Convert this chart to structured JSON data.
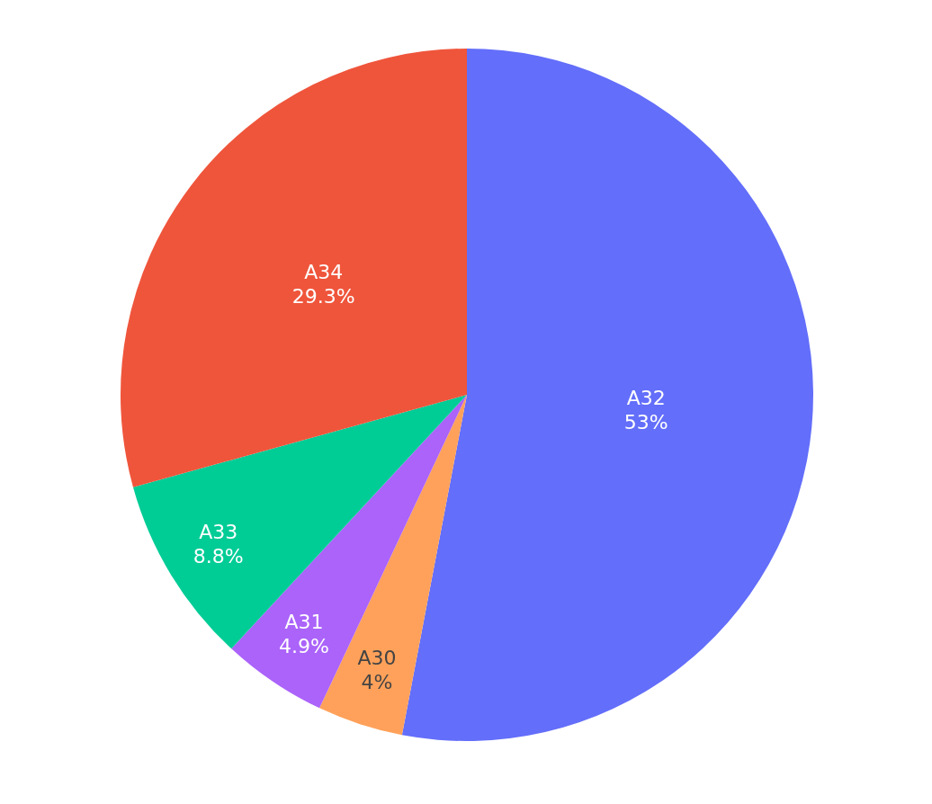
{
  "chart_data": {
    "type": "pie",
    "categories": [
      "A32",
      "A30",
      "A31",
      "A33",
      "A34"
    ],
    "values": [
      53,
      4,
      4.9,
      8.8,
      29.3
    ],
    "value_labels": [
      "53%",
      "4%",
      "4.9%",
      "8.8%",
      "29.3%"
    ],
    "colors": [
      "#636efa",
      "#ffa15a",
      "#ab63fa",
      "#00cc96",
      "#ef553b"
    ],
    "legend": false
  }
}
